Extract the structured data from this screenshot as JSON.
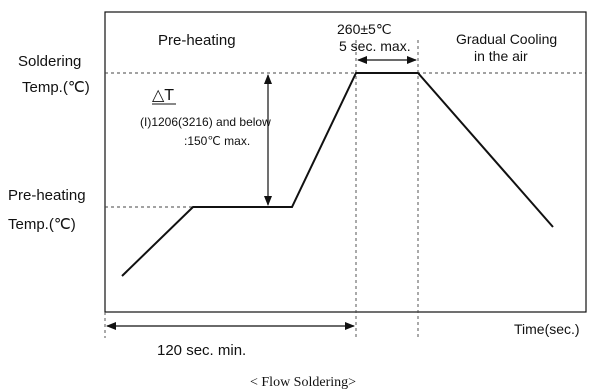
{
  "labels": {
    "soldering_temp_1": "Soldering",
    "soldering_temp_2": "Temp.(℃)",
    "preheating_temp_1": "Pre-heating",
    "preheating_temp_2": "Temp.(℃)",
    "preheating_phase": "Pre-heating",
    "peak_temp": "260±5℃",
    "peak_time": "5 sec. max.",
    "cooling_1": "Gradual Cooling",
    "cooling_2": "in the air",
    "delta_t": "△T",
    "note_1": "(I)1206(3216) and below",
    "note_2": ":150℃ max.",
    "duration": "120 sec. min.",
    "x_axis": "Time(sec.)",
    "caption": "< Flow Soldering>"
  },
  "colors": {
    "line": "#111111",
    "dashed": "#444444"
  }
}
